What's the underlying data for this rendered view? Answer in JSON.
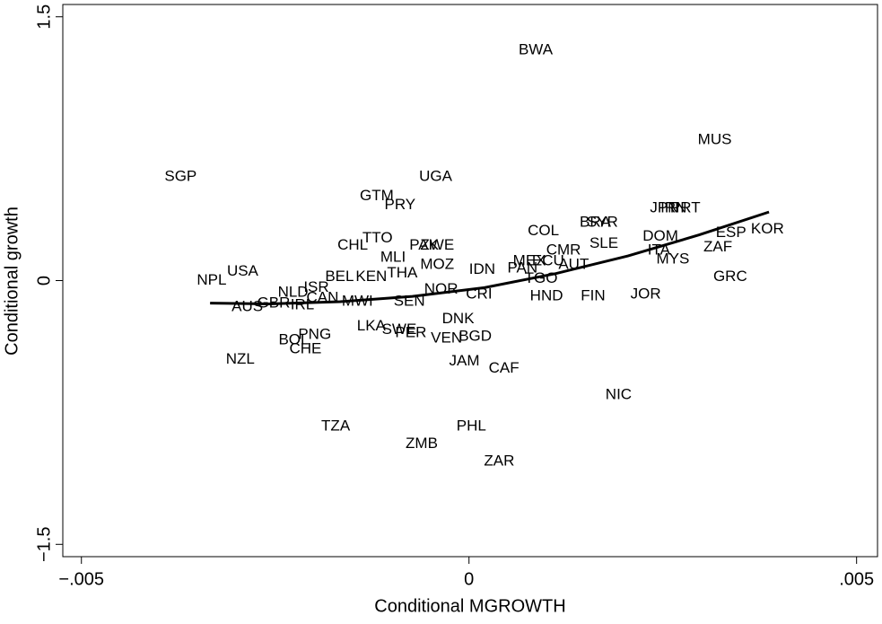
{
  "chart_data": {
    "type": "scatter",
    "x_label": "Conditional MGROWTH",
    "y_label": "Conditional growth",
    "point_labels": [
      "BWA",
      "MUS",
      "SGP",
      "UGA",
      "GTM",
      "PRY",
      "JPN",
      "IRN",
      "PRT",
      "BRA",
      "SYR",
      "COL",
      "KOR",
      "ESP",
      "DOM",
      "TTO",
      "CHL",
      "ZAF",
      "PAK",
      "ZWE",
      "SLE",
      "CMR",
      "ITA",
      "MYS",
      "MEX",
      "ECU",
      "PAN",
      "AUT",
      "TGO",
      "MLI",
      "MOZ",
      "THA",
      "IDN",
      "KEN",
      "BEL",
      "NPL",
      "USA",
      "GRC",
      "NOR",
      "ISR",
      "NLD",
      "GBR",
      "IRL",
      "CAN",
      "MWI",
      "AUS",
      "SEN",
      "JOR",
      "FIN",
      "HND",
      "CRI",
      "DNK",
      "LKA",
      "SWE",
      "PER",
      "BGD",
      "VEN",
      "PNG",
      "BOL",
      "CHE",
      "NZL",
      "JAM",
      "CAF",
      "NIC",
      "TZA",
      "PHL",
      "ZMB",
      "ZAR"
    ],
    "x": [
      0.00086,
      0.00317,
      -0.00372,
      -0.00043,
      -0.00119,
      -0.00089,
      0.00252,
      0.00264,
      0.00279,
      0.00163,
      0.00172,
      0.00096,
      0.00385,
      0.00338,
      0.00247,
      -0.00118,
      -0.0015,
      0.00321,
      -0.00058,
      -0.00041,
      0.00174,
      0.00122,
      0.00245,
      0.00263,
      0.00078,
      0.00102,
      0.00069,
      0.00135,
      0.00093,
      -0.00098,
      -0.00041,
      -0.00086,
      0.00017,
      -0.00126,
      -0.00167,
      -0.00332,
      -0.00292,
      0.00337,
      -0.00036,
      -0.00197,
      -0.00227,
      -0.00252,
      -0.00215,
      -0.00189,
      -0.00144,
      -0.00286,
      -0.00077,
      0.00228,
      0.0016,
      0.001,
      0.00013,
      -0.00014,
      -0.00126,
      -0.0009,
      -0.00075,
      8e-05,
      -0.00029,
      -0.00199,
      -0.00226,
      -0.00211,
      -0.00295,
      -6e-05,
      0.00045,
      0.00193,
      -0.00172,
      3e-05,
      -0.00061,
      0.00039
    ],
    "values": [
      1.31,
      0.8,
      0.59,
      0.59,
      0.48,
      0.43,
      0.41,
      0.41,
      0.41,
      0.33,
      0.33,
      0.28,
      0.29,
      0.27,
      0.25,
      0.24,
      0.2,
      0.19,
      0.2,
      0.2,
      0.21,
      0.17,
      0.17,
      0.12,
      0.11,
      0.11,
      0.07,
      0.09,
      0.01,
      0.13,
      0.09,
      0.04,
      0.06,
      0.02,
      0.02,
      0.0,
      0.05,
      0.02,
      -0.05,
      -0.04,
      -0.07,
      -0.13,
      -0.14,
      -0.1,
      -0.12,
      -0.15,
      -0.12,
      -0.08,
      -0.09,
      -0.09,
      -0.08,
      -0.22,
      -0.26,
      -0.28,
      -0.3,
      -0.32,
      -0.33,
      -0.31,
      -0.34,
      -0.39,
      -0.45,
      -0.46,
      -0.5,
      -0.65,
      -0.83,
      -0.83,
      -0.93,
      -1.03
    ],
    "fit": {
      "x": [
        -0.00334,
        -0.00258,
        -0.00166,
        -0.00073,
        0.0002,
        0.00112,
        0.00205,
        0.00297,
        0.00387
      ],
      "values": [
        -0.128,
        -0.133,
        -0.12,
        -0.09,
        -0.04,
        0.04,
        0.14,
        0.26,
        0.39
      ]
    },
    "xlim": [
      -0.00524,
      0.00527
    ],
    "ylim": [
      -1.57,
      1.57
    ],
    "xticks": [
      {
        "value": -0.005,
        "label": "−.005"
      },
      0,
      {
        "value": 0.005,
        "label": ".005"
      }
    ],
    "yticks": [
      {
        "value": -1.5,
        "label": "−1.5"
      },
      0,
      1.5
    ]
  }
}
